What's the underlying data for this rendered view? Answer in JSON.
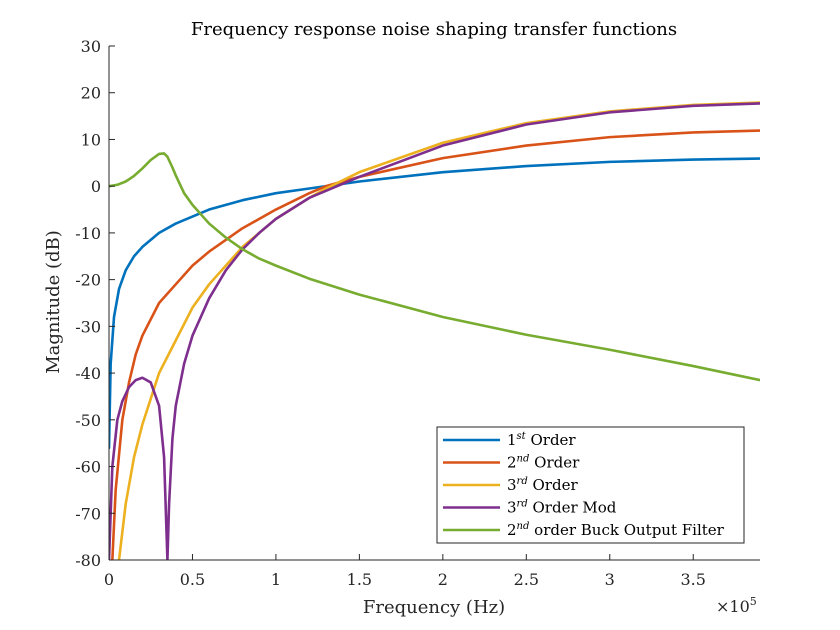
{
  "chart_data": {
    "type": "line",
    "title": "Frequency response noise shaping transfer functions",
    "xlabel": "Frequency (Hz)",
    "ylabel": "Magnitude (dB)",
    "x_multiplier_label": "×10",
    "x_multiplier_exponent": "5",
    "xlim": [
      0,
      390000
    ],
    "ylim": [
      -80,
      30
    ],
    "x_ticks": [
      0,
      50000,
      100000,
      150000,
      200000,
      250000,
      300000,
      350000
    ],
    "x_tick_labels": [
      "0",
      "0.5",
      "1",
      "1.5",
      "2",
      "2.5",
      "3",
      "3.5"
    ],
    "y_ticks": [
      -80,
      -70,
      -60,
      -50,
      -40,
      -30,
      -20,
      -10,
      0,
      10,
      20,
      30
    ],
    "y_tick_labels": [
      "-80",
      "-70",
      "-60",
      "-50",
      "-40",
      "-30",
      "-20",
      "-10",
      "0",
      "10",
      "20",
      "30"
    ],
    "grid": false,
    "legend_position": "bottom-right",
    "series": [
      {
        "name_base": "1",
        "name_sup": "st",
        "name_rest": " Order",
        "color": "#0072BD",
        "x": [
          0,
          1000,
          3000,
          6000,
          10000,
          15000,
          20000,
          30000,
          40000,
          50000,
          60000,
          80000,
          100000,
          120000,
          130000,
          150000,
          200000,
          250000,
          300000,
          350000,
          390000
        ],
        "y": [
          -56,
          -38,
          -28,
          -22,
          -18,
          -15,
          -13,
          -10,
          -8,
          -6.5,
          -5,
          -3,
          -1.5,
          -0.5,
          0,
          1,
          3,
          4.3,
          5.2,
          5.7,
          5.9
        ]
      },
      {
        "name_base": "2",
        "name_sup": "nd",
        "name_rest": " Order",
        "color": "#D95319",
        "x": [
          2000,
          4000,
          8000,
          12000,
          16000,
          20000,
          30000,
          40000,
          50000,
          60000,
          80000,
          100000,
          120000,
          130000,
          150000,
          200000,
          250000,
          300000,
          350000,
          390000
        ],
        "y": [
          -80,
          -65,
          -50,
          -42,
          -36,
          -32,
          -25,
          -21,
          -17,
          -14,
          -9,
          -5,
          -1.5,
          0,
          2,
          6,
          8.7,
          10.5,
          11.5,
          11.9
        ]
      },
      {
        "name_base": "3",
        "name_sup": "rd",
        "name_rest": " Order",
        "color": "#EDB120",
        "x": [
          6000,
          10000,
          15000,
          20000,
          30000,
          40000,
          50000,
          60000,
          70000,
          80000,
          100000,
          120000,
          130000,
          150000,
          200000,
          250000,
          300000,
          350000,
          390000
        ],
        "y": [
          -80,
          -68,
          -58,
          -51,
          -40,
          -33,
          -26,
          -21,
          -17,
          -13,
          -7,
          -2.5,
          -0.5,
          3,
          9.3,
          13.5,
          16,
          17.4,
          17.9
        ]
      },
      {
        "name_base": "3",
        "name_sup": "rd",
        "name_rest": " Order Mod",
        "color": "#7E2F8E",
        "x": [
          0,
          2000,
          5000,
          8000,
          12000,
          16000,
          20000,
          25000,
          30000,
          33000,
          35000,
          36000,
          38000,
          40000,
          45000,
          50000,
          60000,
          70000,
          80000,
          90000,
          100000,
          120000,
          140000,
          150000,
          200000,
          250000,
          300000,
          350000,
          390000
        ],
        "y": [
          -80,
          -60,
          -50,
          -46,
          -43,
          -41.5,
          -41,
          -42,
          -47,
          -58,
          -80,
          -68,
          -54,
          -47,
          -38,
          -32,
          -24,
          -18,
          -13.5,
          -10,
          -7,
          -2.5,
          0.5,
          2,
          8.7,
          13.2,
          15.8,
          17.2,
          17.7
        ]
      },
      {
        "name_base": "2",
        "name_sup": "nd",
        "name_rest": " order Buck Output Filter",
        "color": "#77AC30",
        "x": [
          0,
          5000,
          10000,
          15000,
          20000,
          25000,
          30000,
          33000,
          35000,
          38000,
          40000,
          45000,
          50000,
          60000,
          70000,
          80000,
          90000,
          100000,
          120000,
          150000,
          200000,
          250000,
          300000,
          350000,
          390000
        ],
        "y": [
          0,
          0.3,
          1,
          2.2,
          3.8,
          5.6,
          6.9,
          7,
          6.3,
          4,
          2.3,
          -1.5,
          -4,
          -8,
          -11,
          -13.5,
          -15.5,
          -17,
          -19.8,
          -23.2,
          -28,
          -31.8,
          -35,
          -38.5,
          -41.5
        ]
      }
    ]
  }
}
